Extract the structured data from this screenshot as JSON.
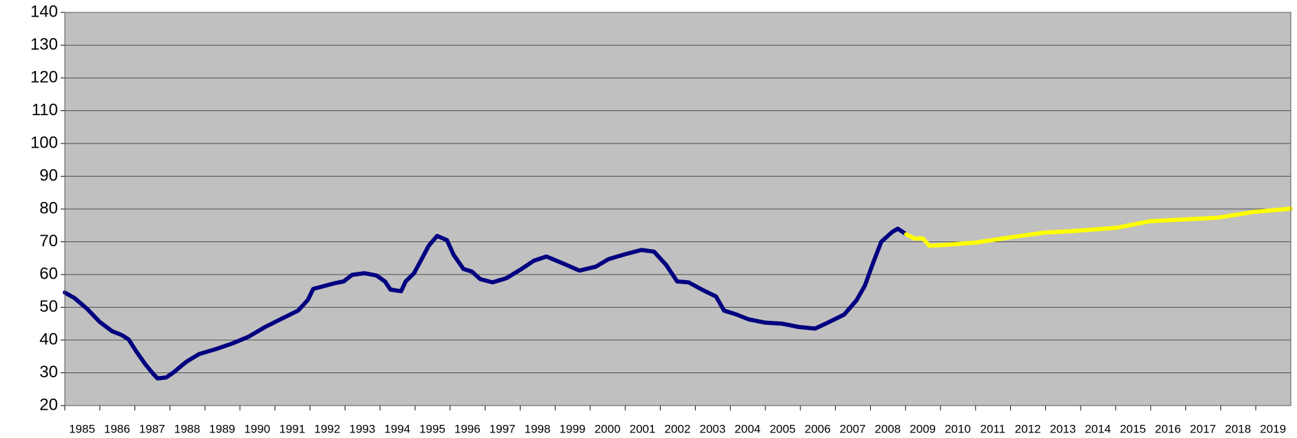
{
  "chart_data": {
    "type": "line",
    "xlim": [
      1985,
      2020
    ],
    "xticks": [
      1985,
      1986,
      1987,
      1988,
      1989,
      1990,
      1991,
      1992,
      1993,
      1994,
      1995,
      1996,
      1997,
      1998,
      1999,
      2000,
      2001,
      2002,
      2003,
      2004,
      2005,
      2006,
      2007,
      2008,
      2009,
      2010,
      2011,
      2012,
      2013,
      2014,
      2015,
      2016,
      2017,
      2018,
      2019
    ],
    "ylim": [
      20,
      140
    ],
    "yticks": [
      20,
      30,
      40,
      50,
      60,
      70,
      80,
      90,
      100,
      110,
      120,
      130,
      140
    ],
    "grid": true,
    "background": "#c0c0c0",
    "series": [
      {
        "color": "#000080",
        "x": [
          1985.0,
          1985.28,
          1985.64,
          1986.0,
          1986.35,
          1986.63,
          1986.82,
          1987.05,
          1987.3,
          1987.53,
          1987.65,
          1987.9,
          1988.1,
          1988.47,
          1988.83,
          1989.3,
          1989.77,
          1990.24,
          1990.72,
          1991.19,
          1991.66,
          1991.94,
          1992.09,
          1992.37,
          1992.72,
          1992.96,
          1993.2,
          1993.55,
          1993.9,
          1994.14,
          1994.3,
          1994.6,
          1994.73,
          1994.97,
          1995.2,
          1995.39,
          1995.63,
          1995.91,
          1996.1,
          1996.38,
          1996.62,
          1996.86,
          1997.21,
          1997.61,
          1998.04,
          1998.39,
          1998.75,
          1999.22,
          1999.69,
          2000.16,
          2000.52,
          2001.0,
          2001.46,
          2001.82,
          2002.17,
          2002.48,
          2002.81,
          2003.19,
          2003.59,
          2003.82,
          2004.18,
          2004.53,
          2005.0,
          2005.48,
          2005.95,
          2006.42,
          2006.78,
          2007.25,
          2007.6,
          2007.84,
          2008.08,
          2008.31,
          2008.62,
          2008.78,
          2009.02
        ],
        "values": [
          54.5,
          52.8,
          49.5,
          45.5,
          42.7,
          41.5,
          40.2,
          36.4,
          32.6,
          29.6,
          28.3,
          28.6,
          30.1,
          33.4,
          35.7,
          37.2,
          38.9,
          41.0,
          44.0,
          46.5,
          49.0,
          52.3,
          55.6,
          56.4,
          57.4,
          57.9,
          59.9,
          60.4,
          59.7,
          57.9,
          55.4,
          54.9,
          57.9,
          60.4,
          65.0,
          68.8,
          71.8,
          70.5,
          66.0,
          61.7,
          60.9,
          58.6,
          57.6,
          58.9,
          61.7,
          64.2,
          65.5,
          63.4,
          61.2,
          62.4,
          64.7,
          66.2,
          67.5,
          67.0,
          62.9,
          57.9,
          57.6,
          55.4,
          53.3,
          49.0,
          47.8,
          46.3,
          45.3,
          45.0,
          44.0,
          43.5,
          45.3,
          47.8,
          52.1,
          56.6,
          63.7,
          70.0,
          73.0,
          74.0,
          72.3
        ]
      },
      {
        "color": "#ffff00",
        "x": [
          2009.02,
          2009.26,
          2009.5,
          2009.68,
          2010.08,
          2011.03,
          2011.97,
          2012.96,
          2013.86,
          2015.04,
          2015.99,
          2017.88,
          2018.94,
          2020.0
        ],
        "values": [
          72.3,
          71.0,
          71.0,
          68.8,
          69.0,
          69.8,
          71.3,
          72.8,
          73.3,
          74.3,
          76.3,
          77.3,
          79.1,
          80.1
        ]
      }
    ]
  }
}
